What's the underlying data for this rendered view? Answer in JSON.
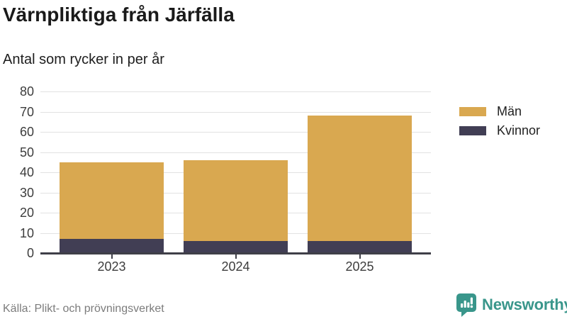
{
  "header": {
    "title": "Värnpliktiga från Järfälla",
    "subtitle": "Antal som rycker in per år"
  },
  "chart_data": {
    "type": "bar",
    "stacked": true,
    "title": "Värnpliktiga från Järfälla",
    "subtitle": "Antal som rycker in per år",
    "categories": [
      "2023",
      "2024",
      "2025"
    ],
    "series": [
      {
        "name": "Män",
        "color": "#d9a850",
        "values": [
          38,
          40,
          62
        ]
      },
      {
        "name": "Kvinnor",
        "color": "#413e54",
        "values": [
          7,
          6,
          6
        ]
      }
    ],
    "totals": [
      45,
      46,
      68
    ],
    "xlabel": "",
    "ylabel": "",
    "ylim": [
      0,
      80
    ],
    "yticks": [
      0,
      10,
      20,
      30,
      40,
      50,
      60,
      70,
      80
    ],
    "grid": "horizontal",
    "legend_position": "right"
  },
  "footer": {
    "source": "Källa: Plikt- och prövningsverket",
    "brand": "Newsworthy",
    "brand_color": "#39968b",
    "brand_icon": "newsworthy-chart-bubble-icon"
  }
}
